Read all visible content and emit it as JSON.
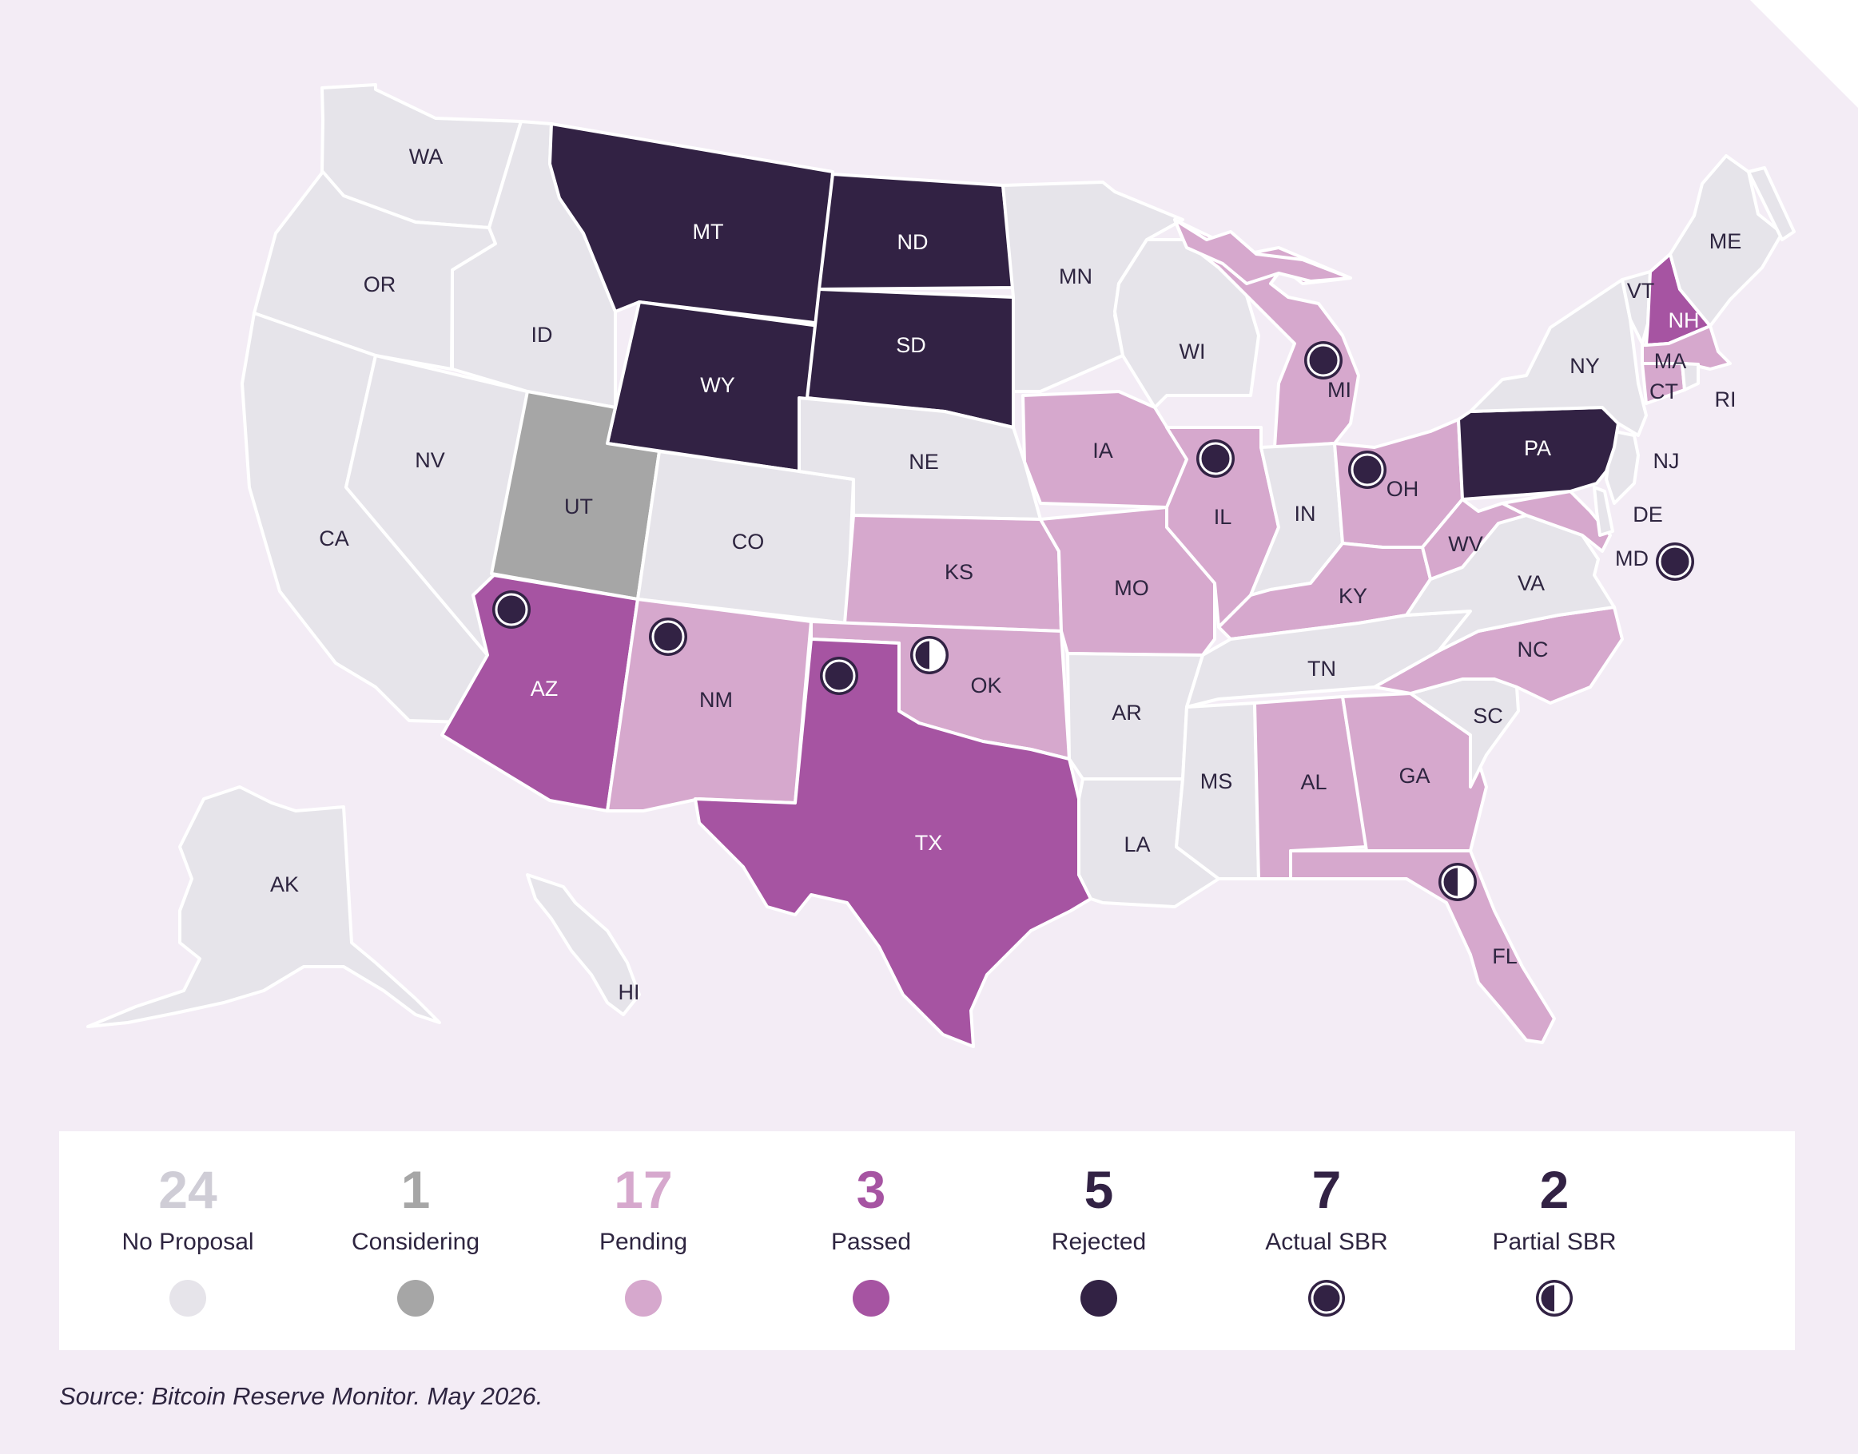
{
  "colors": {
    "background": "#f3ecf5",
    "no_proposal": "#e6e4ea",
    "considering": "#a6a6a6",
    "pending": "#d6a8cd",
    "passed": "#a654a2",
    "rejected": "#322244",
    "marker_fill": "#322244",
    "text_dark": "#2e2540"
  },
  "map": {
    "states": [
      {
        "code": "WA",
        "status": "no_proposal"
      },
      {
        "code": "OR",
        "status": "no_proposal"
      },
      {
        "code": "CA",
        "status": "no_proposal"
      },
      {
        "code": "NV",
        "status": "no_proposal"
      },
      {
        "code": "ID",
        "status": "no_proposal"
      },
      {
        "code": "MT",
        "status": "rejected"
      },
      {
        "code": "WY",
        "status": "rejected"
      },
      {
        "code": "UT",
        "status": "considering"
      },
      {
        "code": "CO",
        "status": "no_proposal"
      },
      {
        "code": "AZ",
        "status": "passed",
        "marker": "actual"
      },
      {
        "code": "NM",
        "status": "pending",
        "marker": "actual"
      },
      {
        "code": "ND",
        "status": "rejected"
      },
      {
        "code": "SD",
        "status": "rejected"
      },
      {
        "code": "NE",
        "status": "no_proposal"
      },
      {
        "code": "KS",
        "status": "pending"
      },
      {
        "code": "OK",
        "status": "pending",
        "marker": "partial"
      },
      {
        "code": "TX",
        "status": "passed",
        "marker": "actual"
      },
      {
        "code": "MN",
        "status": "no_proposal"
      },
      {
        "code": "IA",
        "status": "pending"
      },
      {
        "code": "MO",
        "status": "pending"
      },
      {
        "code": "AR",
        "status": "no_proposal"
      },
      {
        "code": "LA",
        "status": "no_proposal"
      },
      {
        "code": "WI",
        "status": "no_proposal"
      },
      {
        "code": "IL",
        "status": "pending",
        "marker": "actual"
      },
      {
        "code": "MI",
        "status": "pending",
        "marker": "actual"
      },
      {
        "code": "IN",
        "status": "no_proposal"
      },
      {
        "code": "OH",
        "status": "pending",
        "marker": "actual"
      },
      {
        "code": "KY",
        "status": "pending"
      },
      {
        "code": "TN",
        "status": "no_proposal"
      },
      {
        "code": "MS",
        "status": "no_proposal"
      },
      {
        "code": "AL",
        "status": "pending"
      },
      {
        "code": "GA",
        "status": "pending"
      },
      {
        "code": "FL",
        "status": "pending",
        "marker": "partial"
      },
      {
        "code": "SC",
        "status": "no_proposal"
      },
      {
        "code": "NC",
        "status": "pending"
      },
      {
        "code": "VA",
        "status": "no_proposal"
      },
      {
        "code": "WV",
        "status": "pending"
      },
      {
        "code": "MD",
        "status": "pending",
        "marker": "actual"
      },
      {
        "code": "DE",
        "status": "no_proposal"
      },
      {
        "code": "NJ",
        "status": "no_proposal"
      },
      {
        "code": "PA",
        "status": "rejected"
      },
      {
        "code": "NY",
        "status": "no_proposal"
      },
      {
        "code": "VT",
        "status": "no_proposal"
      },
      {
        "code": "NH",
        "status": "passed"
      },
      {
        "code": "ME",
        "status": "no_proposal"
      },
      {
        "code": "MA",
        "status": "pending"
      },
      {
        "code": "CT",
        "status": "pending"
      },
      {
        "code": "RI",
        "status": "no_proposal"
      },
      {
        "code": "AK",
        "status": "no_proposal"
      },
      {
        "code": "HI",
        "status": "no_proposal"
      }
    ]
  },
  "legend": {
    "items": [
      {
        "key": "no_proposal",
        "count": "24",
        "label": "No Proposal",
        "swatch": "solid",
        "color": "#e6e4ea"
      },
      {
        "key": "considering",
        "count": "1",
        "label": "Considering",
        "swatch": "solid",
        "color": "#a6a6a6"
      },
      {
        "key": "pending",
        "count": "17",
        "label": "Pending",
        "swatch": "solid",
        "color": "#d6a8cd"
      },
      {
        "key": "passed",
        "count": "3",
        "label": "Passed",
        "swatch": "solid",
        "color": "#a654a2"
      },
      {
        "key": "rejected",
        "count": "5",
        "label": "Rejected",
        "swatch": "solid",
        "color": "#322244"
      },
      {
        "key": "actual_sbr",
        "count": "7",
        "label": "Actual SBR",
        "swatch": "actual",
        "color": "#322244"
      },
      {
        "key": "partial_sbr",
        "count": "2",
        "label": "Partial SBR",
        "swatch": "partial",
        "color": "#322244"
      }
    ]
  },
  "source": "Source: Bitcoin Reserve Monitor. May 2026."
}
